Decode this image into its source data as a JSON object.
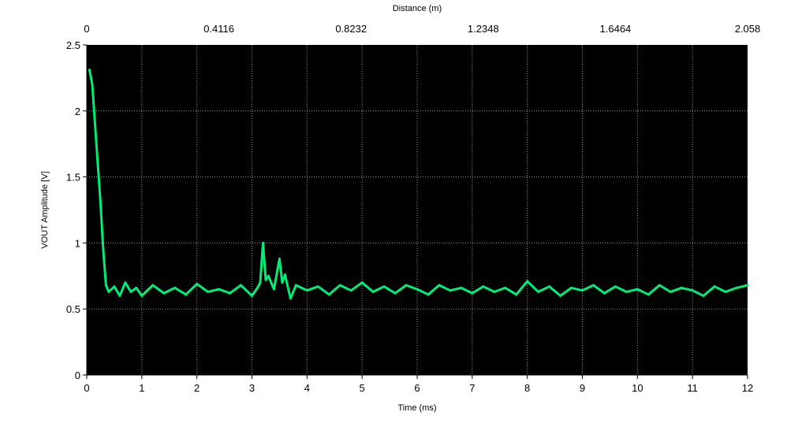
{
  "chart_data": {
    "type": "line",
    "title": "",
    "xlabel": "Time (ms)",
    "ylabel": "VOUT Amplitude [V]",
    "x2label": "Distance (m)",
    "xlim": [
      0,
      12
    ],
    "ylim": [
      0,
      2.5
    ],
    "x_ticks": [
      "0",
      "1",
      "2",
      "3",
      "4",
      "5",
      "6",
      "7",
      "8",
      "9",
      "10",
      "11",
      "12"
    ],
    "y_ticks": [
      "0",
      "0.5",
      "1",
      "1.5",
      "2",
      "2.5"
    ],
    "x2_ticks": [
      "0",
      "0.4116",
      "0.8232",
      "1.2348",
      "1.6464",
      "2.058"
    ],
    "grid": true,
    "legend": "none",
    "plot_background": "#000000",
    "series": [
      {
        "color": "#00ee77",
        "x": [
          0.05,
          0.1,
          0.15,
          0.2,
          0.25,
          0.3,
          0.35,
          0.4,
          0.5,
          0.6,
          0.7,
          0.8,
          0.9,
          1.0,
          1.2,
          1.4,
          1.6,
          1.8,
          2.0,
          2.2,
          2.4,
          2.6,
          2.8,
          3.0,
          3.1,
          3.15,
          3.2,
          3.25,
          3.3,
          3.4,
          3.5,
          3.55,
          3.6,
          3.7,
          3.8,
          4.0,
          4.2,
          4.4,
          4.6,
          4.8,
          5.0,
          5.2,
          5.4,
          5.6,
          5.8,
          6.0,
          6.2,
          6.4,
          6.6,
          6.8,
          7.0,
          7.2,
          7.4,
          7.6,
          7.8,
          8.0,
          8.2,
          8.4,
          8.6,
          8.8,
          9.0,
          9.2,
          9.4,
          9.6,
          9.8,
          10.0,
          10.2,
          10.4,
          10.6,
          10.8,
          11.0,
          11.2,
          11.4,
          11.6,
          11.8,
          12.0
        ],
        "y": [
          2.31,
          2.2,
          1.9,
          1.6,
          1.3,
          0.95,
          0.68,
          0.63,
          0.67,
          0.6,
          0.7,
          0.63,
          0.66,
          0.6,
          0.68,
          0.62,
          0.66,
          0.61,
          0.69,
          0.63,
          0.65,
          0.62,
          0.68,
          0.6,
          0.66,
          0.7,
          1.0,
          0.72,
          0.75,
          0.65,
          0.88,
          0.7,
          0.76,
          0.58,
          0.68,
          0.64,
          0.67,
          0.61,
          0.68,
          0.64,
          0.7,
          0.63,
          0.67,
          0.62,
          0.68,
          0.65,
          0.61,
          0.68,
          0.64,
          0.66,
          0.62,
          0.67,
          0.63,
          0.66,
          0.61,
          0.71,
          0.63,
          0.67,
          0.6,
          0.66,
          0.64,
          0.68,
          0.62,
          0.67,
          0.63,
          0.65,
          0.61,
          0.68,
          0.63,
          0.66,
          0.64,
          0.6,
          0.67,
          0.63,
          0.66,
          0.68
        ]
      }
    ]
  }
}
